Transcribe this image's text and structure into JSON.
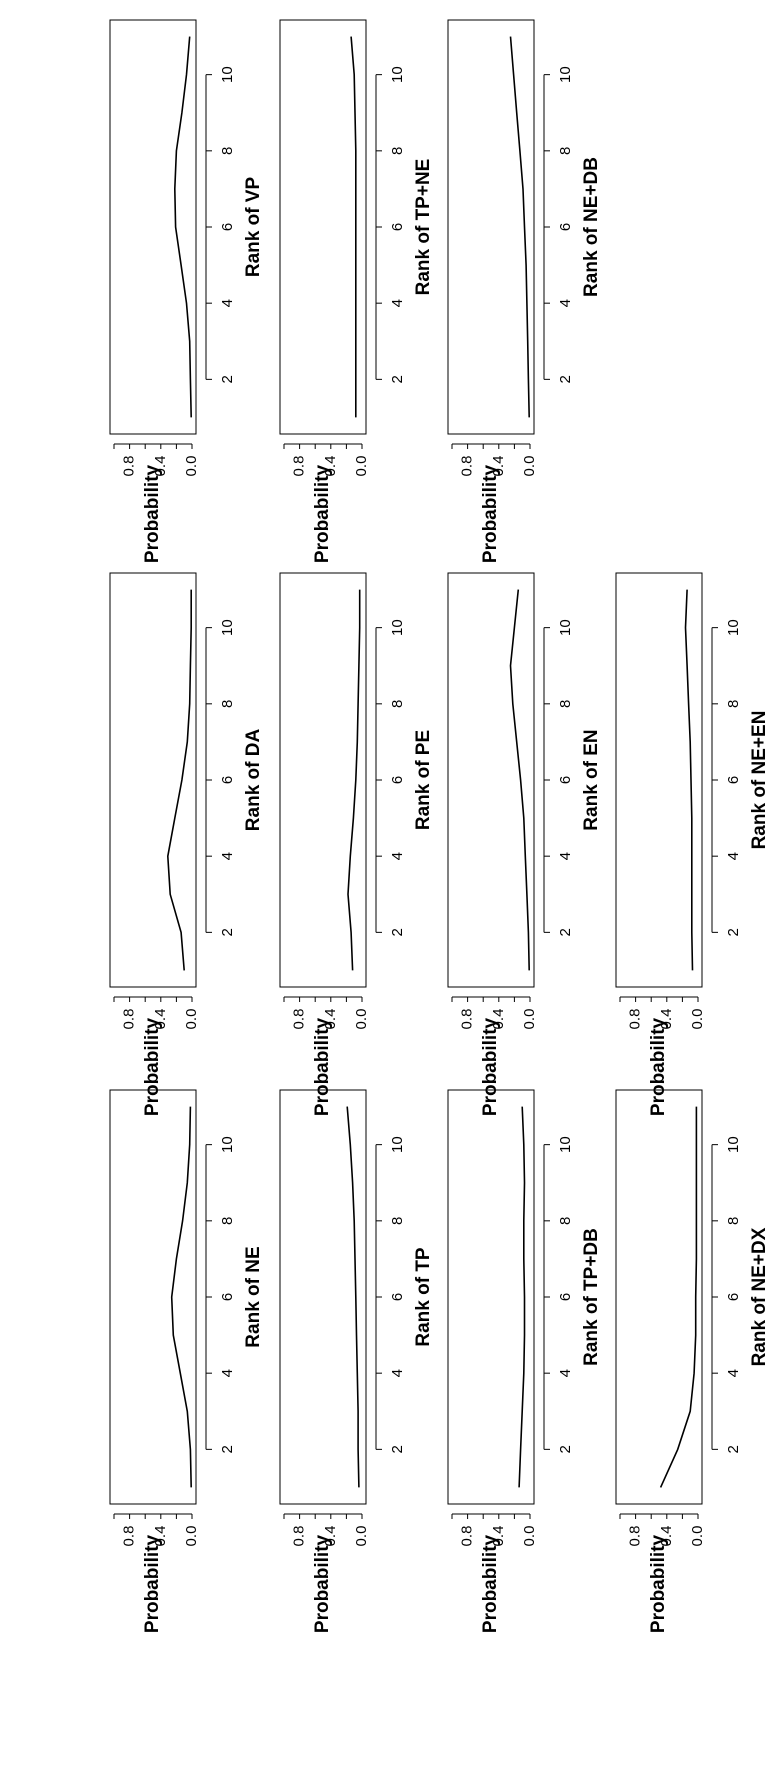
{
  "chart_data": [
    {
      "type": "line",
      "xlabel": "Rank of NE",
      "ylabel": "Probability",
      "x": [
        1,
        2,
        3,
        4,
        5,
        6,
        7,
        8,
        9,
        10,
        11
      ],
      "values": [
        0.01,
        0.02,
        0.06,
        0.15,
        0.24,
        0.26,
        0.2,
        0.12,
        0.06,
        0.03,
        0.02
      ],
      "xticks": [
        "2",
        "4",
        "6",
        "8",
        "10"
      ],
      "yticks": [
        "0.0",
        "0.4",
        "0.8"
      ],
      "ylim": [
        0,
        1
      ],
      "xlim": [
        1,
        11
      ]
    },
    {
      "type": "line",
      "xlabel": "Rank of DA",
      "ylabel": "Probability",
      "x": [
        1,
        2,
        3,
        4,
        5,
        6,
        7,
        8,
        9,
        10,
        11
      ],
      "values": [
        0.1,
        0.14,
        0.28,
        0.31,
        0.22,
        0.13,
        0.06,
        0.03,
        0.02,
        0.01,
        0.01
      ],
      "xticks": [
        "2",
        "4",
        "6",
        "8",
        "10"
      ],
      "yticks": [
        "0.0",
        "0.4",
        "0.8"
      ],
      "ylim": [
        0,
        1
      ],
      "xlim": [
        1,
        11
      ]
    },
    {
      "type": "line",
      "xlabel": "Rank of VP",
      "ylabel": "Probability",
      "x": [
        1,
        2,
        3,
        4,
        5,
        6,
        7,
        8,
        9,
        10,
        11
      ],
      "values": [
        0.01,
        0.02,
        0.03,
        0.07,
        0.14,
        0.21,
        0.22,
        0.2,
        0.13,
        0.07,
        0.03
      ],
      "xticks": [
        "2",
        "4",
        "6",
        "8",
        "10"
      ],
      "yticks": [
        "0.0",
        "0.4",
        "0.8"
      ],
      "ylim": [
        0,
        1
      ],
      "xlim": [
        1,
        11
      ]
    },
    {
      "type": "line",
      "xlabel": "Rank of TP",
      "ylabel": "Probability",
      "x": [
        1,
        2,
        3,
        4,
        5,
        6,
        7,
        8,
        9,
        10,
        11
      ],
      "values": [
        0.04,
        0.05,
        0.05,
        0.06,
        0.07,
        0.08,
        0.09,
        0.1,
        0.12,
        0.15,
        0.19
      ],
      "xticks": [
        "2",
        "4",
        "6",
        "8",
        "10"
      ],
      "yticks": [
        "0.0",
        "0.4",
        "0.8"
      ],
      "ylim": [
        0,
        1
      ],
      "xlim": [
        1,
        11
      ]
    },
    {
      "type": "line",
      "xlabel": "Rank of PE",
      "ylabel": "Probability",
      "x": [
        1,
        2,
        3,
        4,
        5,
        6,
        7,
        8,
        9,
        10,
        11
      ],
      "values": [
        0.12,
        0.14,
        0.18,
        0.15,
        0.11,
        0.08,
        0.06,
        0.05,
        0.04,
        0.03,
        0.03
      ],
      "xticks": [
        "2",
        "4",
        "6",
        "8",
        "10"
      ],
      "yticks": [
        "0.0",
        "0.4",
        "0.8"
      ],
      "ylim": [
        0,
        1
      ],
      "xlim": [
        1,
        11
      ]
    },
    {
      "type": "line",
      "xlabel": "Rank of TP+NE",
      "ylabel": "Probability",
      "x": [
        1,
        2,
        3,
        4,
        5,
        6,
        7,
        8,
        9,
        10,
        11
      ],
      "values": [
        0.08,
        0.08,
        0.08,
        0.08,
        0.08,
        0.08,
        0.08,
        0.08,
        0.09,
        0.1,
        0.14
      ],
      "xticks": [
        "2",
        "4",
        "6",
        "8",
        "10"
      ],
      "yticks": [
        "0.0",
        "0.4",
        "0.8"
      ],
      "ylim": [
        0,
        1
      ],
      "xlim": [
        1,
        11
      ]
    },
    {
      "type": "line",
      "xlabel": "Rank of TP+DB",
      "ylabel": "Probability",
      "x": [
        1,
        2,
        3,
        4,
        5,
        6,
        7,
        8,
        9,
        10,
        11
      ],
      "values": [
        0.14,
        0.12,
        0.1,
        0.08,
        0.07,
        0.07,
        0.08,
        0.08,
        0.07,
        0.08,
        0.1
      ],
      "xticks": [
        "2",
        "4",
        "6",
        "8",
        "10"
      ],
      "yticks": [
        "0.0",
        "0.4",
        "0.8"
      ],
      "ylim": [
        0,
        1
      ],
      "xlim": [
        1,
        11
      ]
    },
    {
      "type": "line",
      "xlabel": "Rank of EN",
      "ylabel": "Probability",
      "x": [
        1,
        2,
        3,
        4,
        5,
        6,
        7,
        8,
        9,
        10,
        11
      ],
      "values": [
        0.01,
        0.02,
        0.04,
        0.06,
        0.08,
        0.12,
        0.17,
        0.22,
        0.25,
        0.2,
        0.15
      ],
      "xticks": [
        "2",
        "4",
        "6",
        "8",
        "10"
      ],
      "yticks": [
        "0.0",
        "0.4",
        "0.8"
      ],
      "ylim": [
        0,
        1
      ],
      "xlim": [
        1,
        11
      ]
    },
    {
      "type": "line",
      "xlabel": "Rank of NE+DB",
      "ylabel": "Probability",
      "x": [
        1,
        2,
        3,
        4,
        5,
        6,
        7,
        8,
        9,
        10,
        11
      ],
      "values": [
        0.01,
        0.02,
        0.03,
        0.04,
        0.05,
        0.07,
        0.09,
        0.13,
        0.17,
        0.21,
        0.25
      ],
      "xticks": [
        "2",
        "4",
        "6",
        "8",
        "10"
      ],
      "yticks": [
        "0.0",
        "0.4",
        "0.8"
      ],
      "ylim": [
        0,
        1
      ],
      "xlim": [
        1,
        11
      ]
    },
    {
      "type": "line",
      "xlabel": "Rank of NE+DX",
      "ylabel": "Probability",
      "x": [
        1,
        2,
        3,
        4,
        5,
        6,
        7,
        8,
        9,
        10,
        11
      ],
      "values": [
        0.48,
        0.26,
        0.1,
        0.05,
        0.03,
        0.03,
        0.02,
        0.02,
        0.02,
        0.02,
        0.02
      ],
      "xticks": [
        "2",
        "4",
        "6",
        "8",
        "10"
      ],
      "yticks": [
        "0.0",
        "0.4",
        "0.8"
      ],
      "ylim": [
        0,
        1
      ],
      "xlim": [
        1,
        11
      ]
    },
    {
      "type": "line",
      "xlabel": "Rank of NE+EN",
      "ylabel": "Probability",
      "x": [
        1,
        2,
        3,
        4,
        5,
        6,
        7,
        8,
        9,
        10,
        11
      ],
      "values": [
        0.07,
        0.08,
        0.08,
        0.08,
        0.08,
        0.09,
        0.1,
        0.12,
        0.14,
        0.16,
        0.14
      ],
      "xticks": [
        "2",
        "4",
        "6",
        "8",
        "10"
      ],
      "yticks": [
        "0.0",
        "0.4",
        "0.8"
      ],
      "ylim": [
        0,
        1
      ],
      "xlim": [
        1,
        11
      ]
    }
  ]
}
